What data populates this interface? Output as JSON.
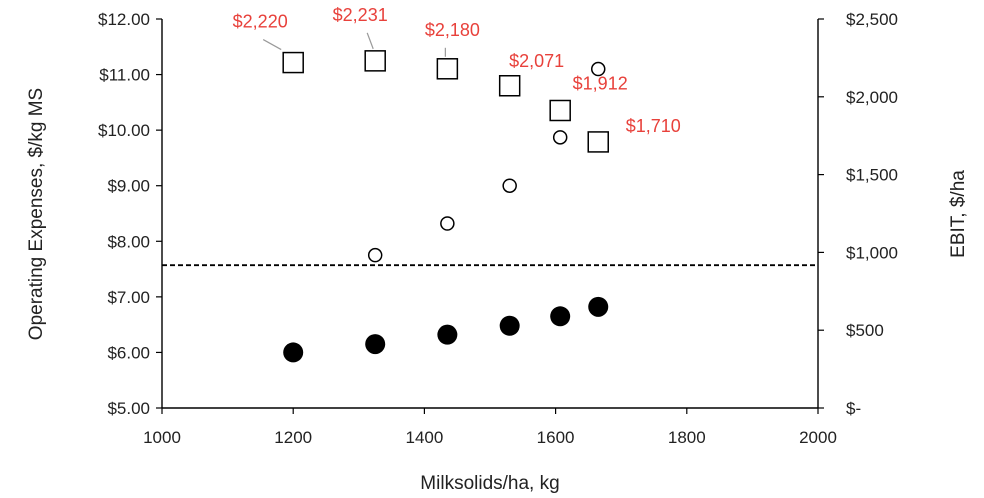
{
  "chart_data": {
    "type": "scatter",
    "title": "",
    "xlabel": "Milksolids/ha, kg",
    "ylabel_left": "Operating Expenses, $/kg MS",
    "ylabel_right": "EBIT, $/ha",
    "xlim": [
      1000,
      2000
    ],
    "x_ticks": [
      1000,
      1200,
      1400,
      1600,
      1800,
      2000
    ],
    "x_tick_labels": [
      "1000",
      "1200",
      "1400",
      "1600",
      "1800",
      "2000"
    ],
    "ylim_left": [
      5,
      12
    ],
    "y_left_ticks": [
      5,
      6,
      7,
      8,
      9,
      10,
      11,
      12
    ],
    "y_left_tick_labels": [
      "$5.00",
      "$6.00",
      "$7.00",
      "$8.00",
      "$9.00",
      "$10.00",
      "$11.00",
      "$12.00"
    ],
    "ylim_right": [
      0,
      2500
    ],
    "y_right_ticks": [
      0,
      500,
      1000,
      1500,
      2000,
      2500
    ],
    "y_right_tick_labels": [
      "$-",
      "$500",
      "$1,000",
      "$1,500",
      "$2,000",
      "$2,500"
    ],
    "grid": false,
    "series": [
      {
        "marker": "filled-circle",
        "axis": "left",
        "x": [
          1200,
          1325,
          1435,
          1530,
          1607,
          1665
        ],
        "y": [
          6.0,
          6.15,
          6.32,
          6.48,
          6.65,
          6.82
        ]
      },
      {
        "marker": "open-circle",
        "axis": "left",
        "x": [
          1325,
          1435,
          1530,
          1607,
          1665
        ],
        "y": [
          7.75,
          8.32,
          9.0,
          9.87,
          11.1
        ]
      },
      {
        "marker": "open-square",
        "axis": "right",
        "x": [
          1200,
          1325,
          1435,
          1530,
          1607,
          1665
        ],
        "y": [
          2220,
          2231,
          2180,
          2071,
          1912,
          1710
        ],
        "labels": [
          "$2,220",
          "$2,231",
          "$2,180",
          "$2,071",
          "$1,912",
          "$1,710"
        ]
      }
    ],
    "reference_line": {
      "axis": "left",
      "y": 7.57,
      "style": "dashed"
    },
    "colors": {
      "label": "#e8413b",
      "marker": "#000000",
      "axis": "#000000"
    }
  }
}
